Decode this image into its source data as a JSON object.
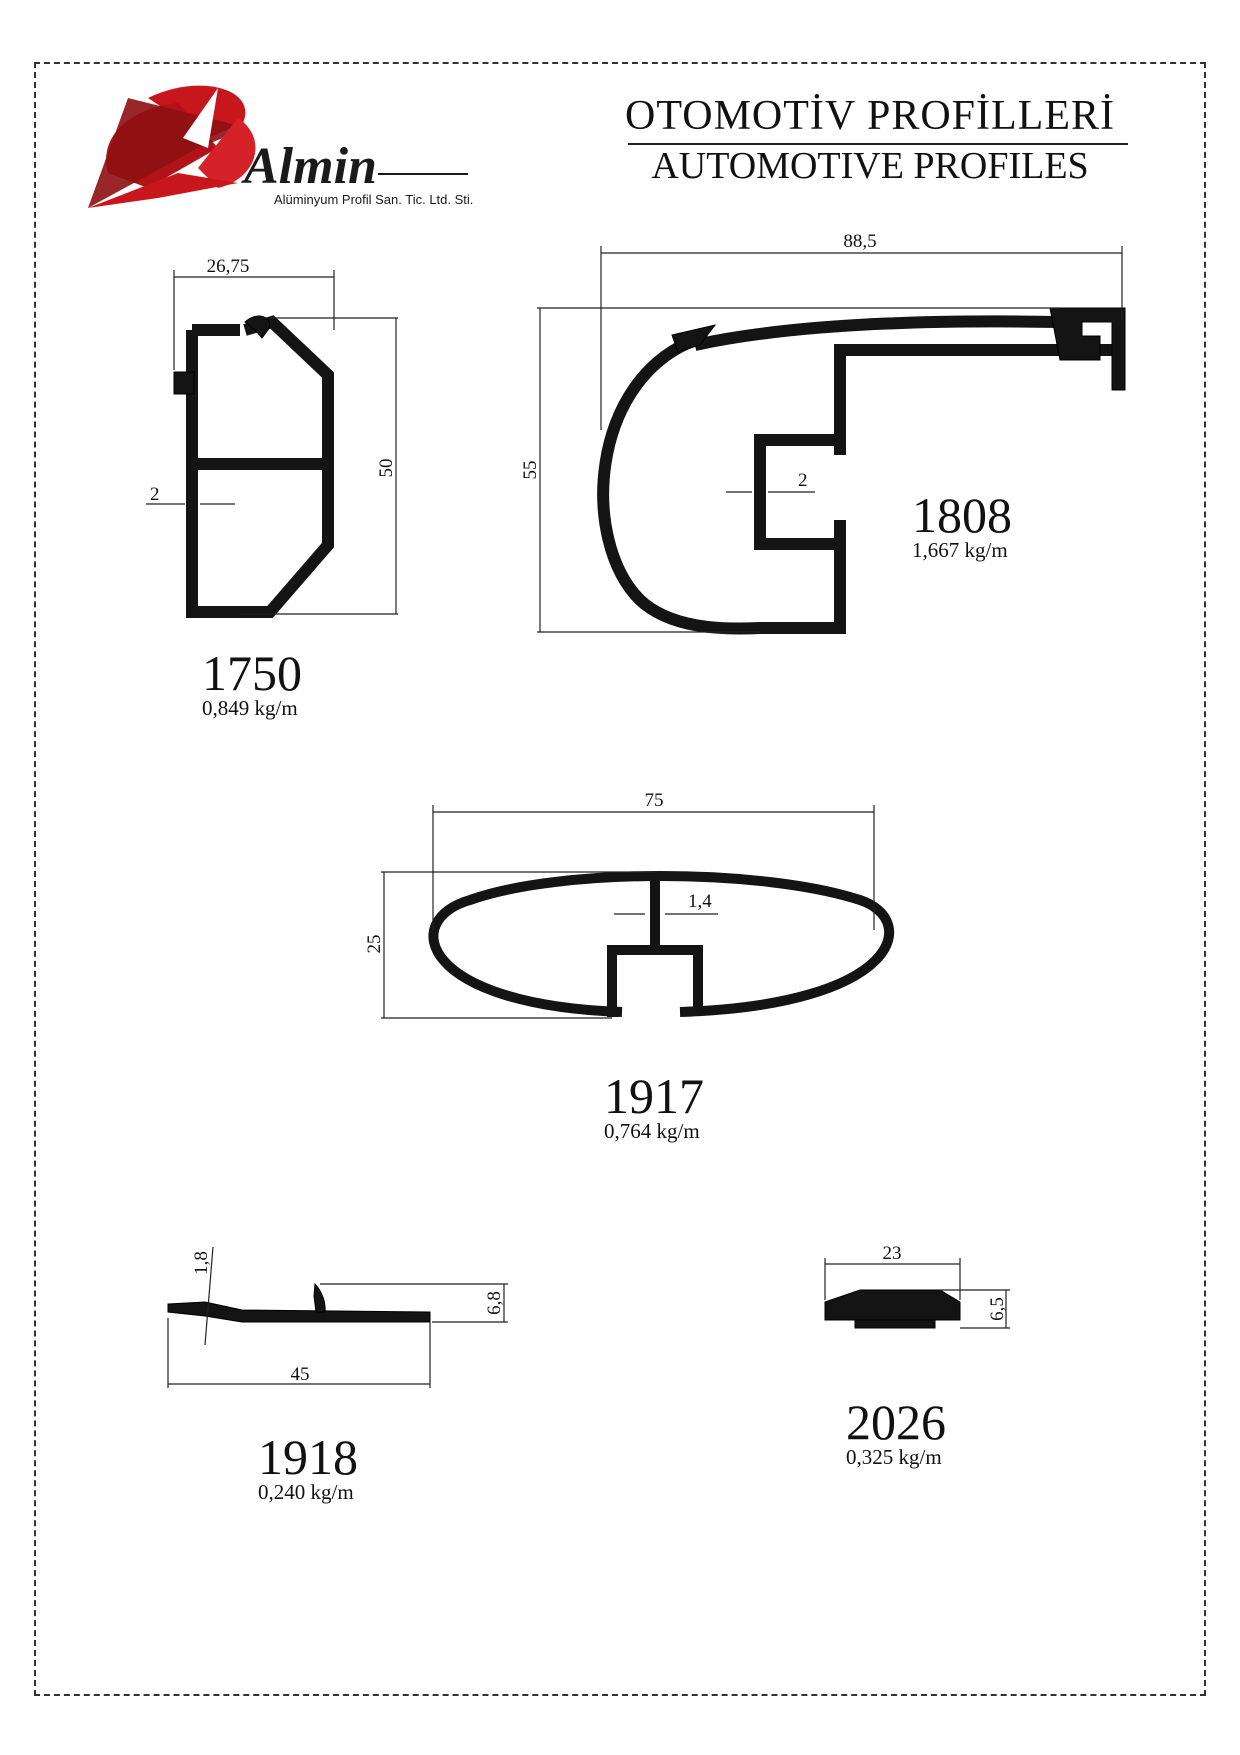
{
  "brand": {
    "name": "Almin",
    "subtitle": "Alüminyum Profil San. Tic. Ltd. Sti.",
    "colors": {
      "red": "#c8171c",
      "dark_red": "#8e0f12",
      "black": "#141414"
    }
  },
  "header": {
    "title_tr": "OTOMOTİV  PROFİLLERİ",
    "title_en": "AUTOMOTIVE PROFILES"
  },
  "profiles": [
    {
      "code": "1750",
      "weight": "0,849 kg/m",
      "dims": {
        "width": "26,75",
        "height": "50",
        "wall": "2"
      }
    },
    {
      "code": "1808",
      "weight": "1,667 kg/m",
      "dims": {
        "width": "88,5",
        "height": "55",
        "wall": "2"
      }
    },
    {
      "code": "1917",
      "weight": "0,764 kg/m",
      "dims": {
        "width": "75",
        "height": "25",
        "wall": "1,4"
      }
    },
    {
      "code": "1918",
      "weight": "0,240 kg/m",
      "dims": {
        "width": "45",
        "height": "6,8",
        "wall": "1,8"
      }
    },
    {
      "code": "2026",
      "weight": "0,325 kg/m",
      "dims": {
        "width": "23",
        "height": "6,5"
      }
    }
  ]
}
